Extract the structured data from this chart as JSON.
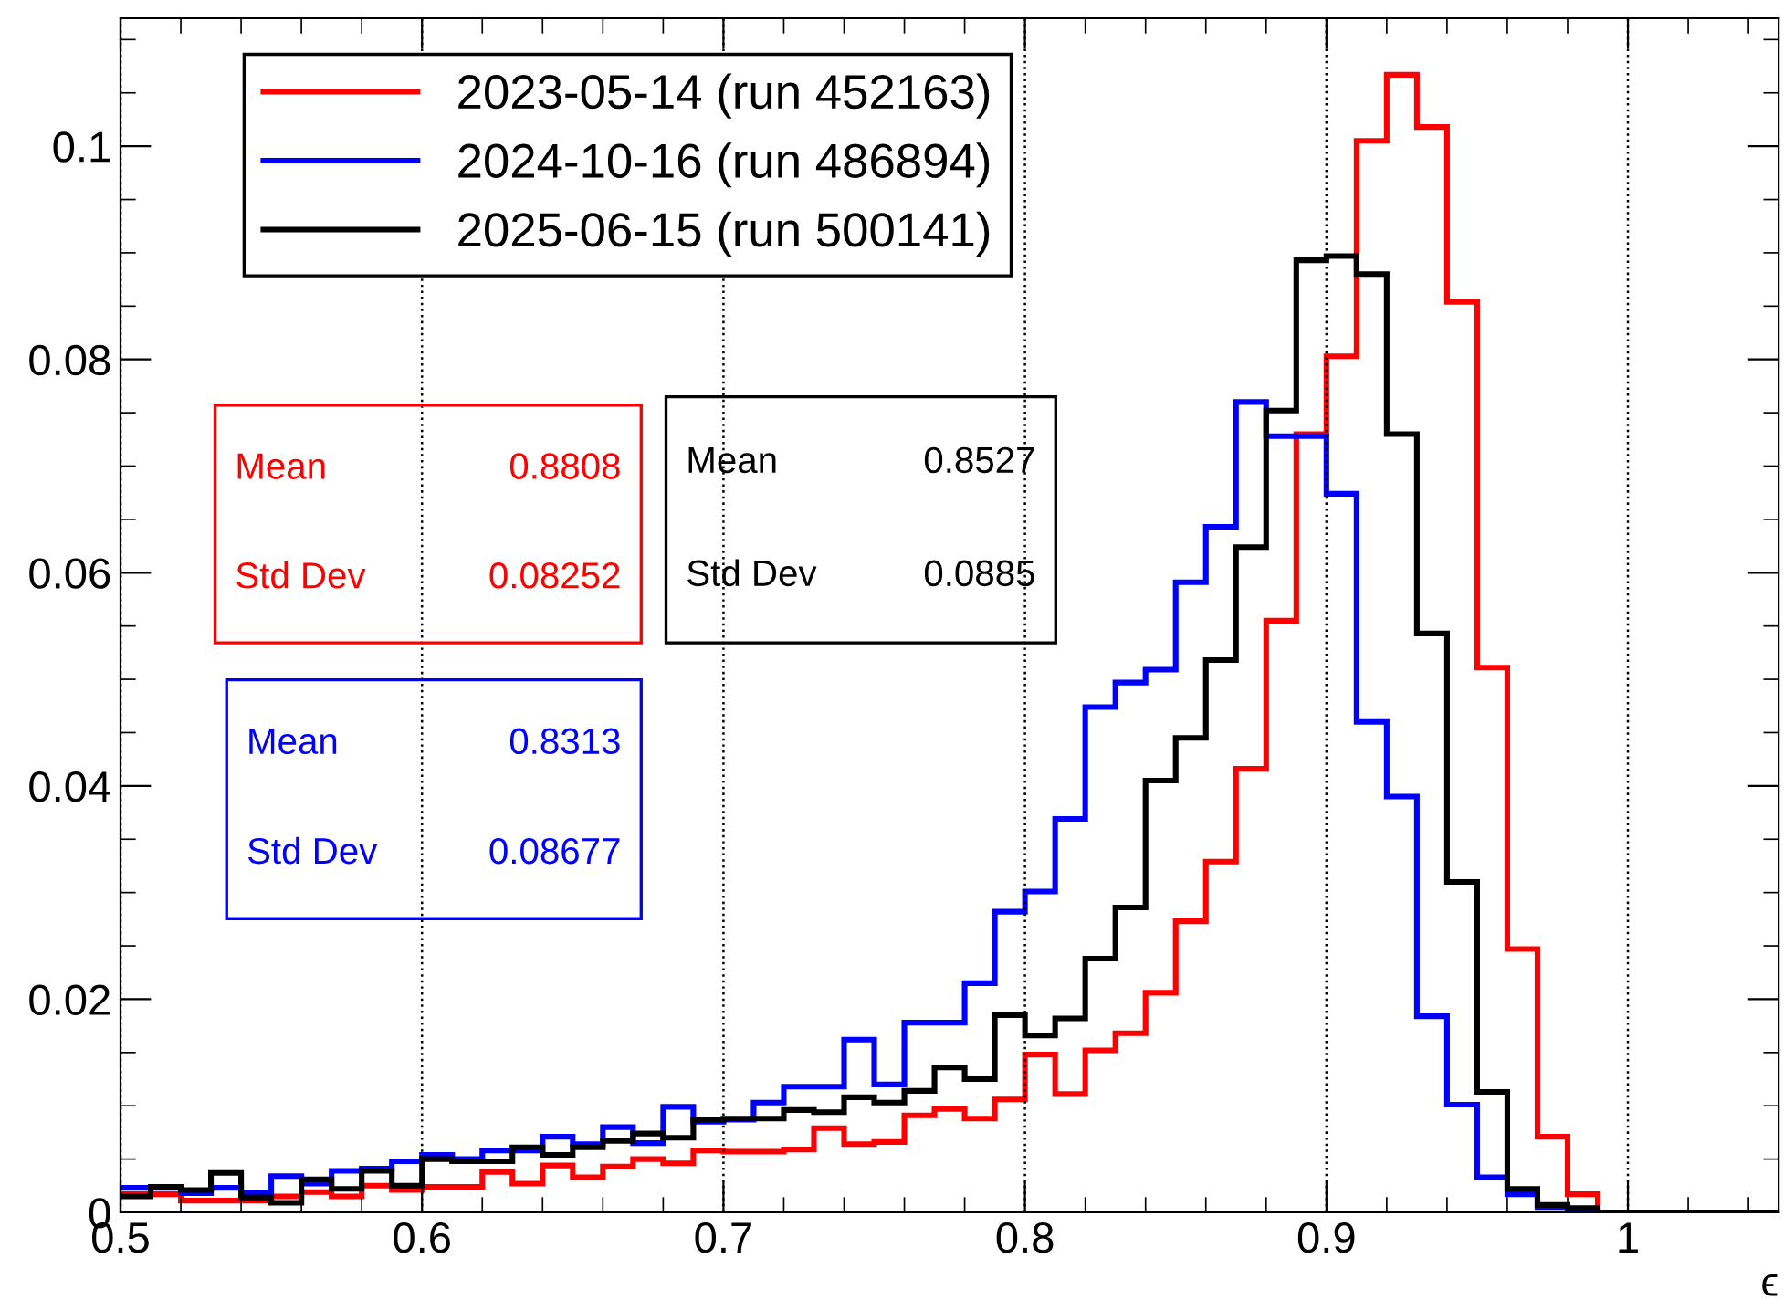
{
  "chart_data": {
    "type": "histogram",
    "xlabel": "ϵ",
    "bins": [
      0.5,
      0.51,
      0.52,
      0.53,
      0.54,
      0.55,
      0.56,
      0.57,
      0.58,
      0.59,
      0.6,
      0.61,
      0.62,
      0.63,
      0.64,
      0.65,
      0.66,
      0.67,
      0.68,
      0.69,
      0.7,
      0.71,
      0.72,
      0.73,
      0.74,
      0.75,
      0.76,
      0.77,
      0.78,
      0.79,
      0.8,
      0.81,
      0.82,
      0.83,
      0.84,
      0.85,
      0.86,
      0.87,
      0.88,
      0.89,
      0.9,
      0.91,
      0.92,
      0.93,
      0.94,
      0.95,
      0.96,
      0.97,
      0.98,
      0.99,
      1.0,
      1.01,
      1.02,
      1.03,
      1.04,
      1.05
    ],
    "series": [
      {
        "name": "2023-05-14 (run 452163)",
        "color": "#ff0000",
        "values": [
          0.0017,
          0.0017,
          0.0011,
          0.0011,
          0.0011,
          0.0015,
          0.0019,
          0.0015,
          0.0025,
          0.0021,
          0.0024,
          0.0024,
          0.0038,
          0.0027,
          0.0044,
          0.0033,
          0.0043,
          0.005,
          0.0046,
          0.0058,
          0.0057,
          0.0057,
          0.0059,
          0.0079,
          0.0064,
          0.0066,
          0.0091,
          0.0097,
          0.0088,
          0.0106,
          0.0148,
          0.0111,
          0.0152,
          0.0168,
          0.0206,
          0.0273,
          0.0329,
          0.0416,
          0.0555,
          0.073,
          0.0803,
          0.1005,
          0.1067,
          0.1018,
          0.0854,
          0.0511,
          0.0247,
          0.0071,
          0.0017,
          0,
          0,
          0,
          0,
          0,
          0
        ]
      },
      {
        "name": "2024-10-16 (run 486894)",
        "color": "#0000ff",
        "values": [
          0.0023,
          0.0023,
          0.0018,
          0.0023,
          0.0018,
          0.0034,
          0.0027,
          0.0039,
          0.0041,
          0.0048,
          0.0054,
          0.005,
          0.0058,
          0.0058,
          0.0071,
          0.0064,
          0.008,
          0.0065,
          0.0099,
          0.0085,
          0.0087,
          0.0103,
          0.0118,
          0.0118,
          0.0162,
          0.012,
          0.0178,
          0.0178,
          0.0215,
          0.0282,
          0.0301,
          0.0369,
          0.0474,
          0.0497,
          0.0509,
          0.0591,
          0.0643,
          0.076,
          0.0728,
          0.0728,
          0.0674,
          0.046,
          0.039,
          0.0184,
          0.0101,
          0.0033,
          0.0017,
          0.0005,
          0.0002,
          0,
          0,
          0,
          0,
          0,
          0
        ]
      },
      {
        "name": "2025-06-15 (run 500141)",
        "color": "#000000",
        "values": [
          0.0015,
          0.0024,
          0.0021,
          0.0037,
          0.0014,
          0.0009,
          0.0031,
          0.0022,
          0.0039,
          0.0025,
          0.005,
          0.0048,
          0.0048,
          0.0061,
          0.0054,
          0.0061,
          0.0067,
          0.0074,
          0.007,
          0.0087,
          0.0088,
          0.0088,
          0.0096,
          0.0094,
          0.0108,
          0.0103,
          0.0114,
          0.0136,
          0.0125,
          0.0185,
          0.0166,
          0.0182,
          0.0238,
          0.0286,
          0.0405,
          0.0445,
          0.0518,
          0.0624,
          0.0752,
          0.0893,
          0.0897,
          0.088,
          0.073,
          0.0543,
          0.031,
          0.0113,
          0.0022,
          0.0007,
          0.0004,
          0,
          0,
          0,
          0,
          0,
          0
        ]
      }
    ],
    "annotations": [
      "Mean 0.8808",
      "Std Dev 0.08252",
      "Mean 0.8313",
      "Std Dev 0.08677",
      "Mean 0.8527",
      "Std Dev 0.0885"
    ],
    "xlim": [
      0.5,
      1.05
    ],
    "xticks": [
      0.5,
      0.6,
      0.7,
      0.8,
      0.9,
      1
    ],
    "ylim": [
      0,
      0.112
    ],
    "yticks": [
      0,
      0.02,
      0.04,
      0.06,
      0.08,
      0.1
    ],
    "grid": "x",
    "legend": "top left"
  }
}
